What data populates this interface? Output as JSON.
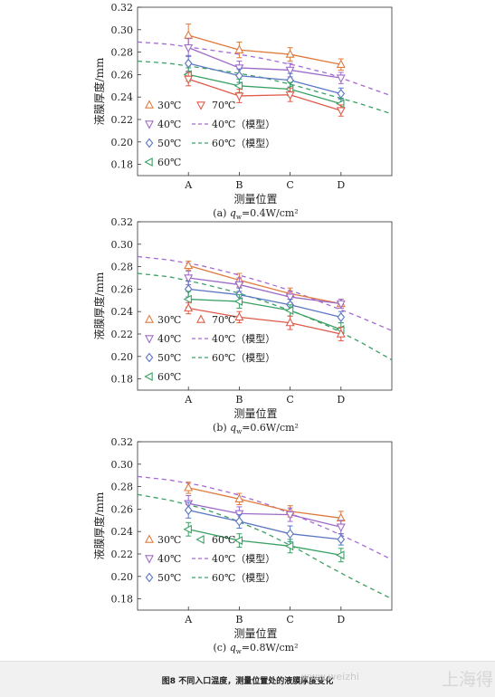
{
  "figure_caption": "图8   不同入口温度，测量位置处的液膜厚度变化",
  "watermark": {
    "url": "www.weizhi",
    "brand": "上海得"
  },
  "chart_data": [
    {
      "type": "line",
      "subtitle": "(a) qw=0.4W/cm²",
      "subtitle_prefix": "(a) ",
      "subtitle_q": "q",
      "subtitle_sub": "w",
      "subtitle_suffix": "=0.4W/cm²",
      "xlabel": "测量位置",
      "ylabel": "液膜厚度/mm",
      "categories": [
        "A",
        "B",
        "C",
        "D"
      ],
      "ylim": [
        0.17,
        0.32
      ],
      "yticks": [
        "0.18",
        "0.20",
        "0.22",
        "0.24",
        "0.26",
        "0.28",
        "0.30",
        "0.32"
      ],
      "legend_position": "bottom-left",
      "series": [
        {
          "name": "30℃",
          "marker": "triangle-up",
          "color": "#e07a3e",
          "values": [
            0.295,
            0.282,
            0.278,
            0.269
          ],
          "errors": [
            0.01,
            0.007,
            0.006,
            0.005
          ]
        },
        {
          "name": "40℃",
          "marker": "triangle-down",
          "color": "#9d6ac7",
          "values": [
            0.284,
            0.266,
            0.264,
            0.257
          ],
          "errors": [
            0.008,
            0.006,
            0.006,
            0.005
          ]
        },
        {
          "name": "50℃",
          "marker": "diamond",
          "color": "#5b77c4",
          "values": [
            0.27,
            0.259,
            0.255,
            0.243
          ],
          "errors": [
            0.007,
            0.006,
            0.006,
            0.005
          ]
        },
        {
          "name": "60℃",
          "marker": "triangle-left",
          "color": "#3aa164",
          "values": [
            0.26,
            0.25,
            0.247,
            0.234
          ],
          "errors": [
            0.006,
            0.006,
            0.006,
            0.005
          ]
        },
        {
          "name": "70℃",
          "marker": "triangle-down",
          "color": "#e05a4a",
          "values": [
            0.256,
            0.241,
            0.242,
            0.228
          ],
          "errors": [
            0.006,
            0.006,
            0.006,
            0.005
          ]
        }
      ],
      "models": [
        {
          "name": "40℃（模型）",
          "color": "#a56ad4",
          "x": [
            0,
            0.5,
            1,
            1.5,
            2,
            2.5,
            3,
            3.5,
            4
          ],
          "values": [
            0.289,
            0.287,
            0.283,
            0.279,
            0.274,
            0.268,
            0.261,
            0.251,
            0.241
          ]
        },
        {
          "name": "60℃（模型）",
          "color": "#3aa164",
          "x": [
            0,
            0.5,
            1,
            1.5,
            2,
            2.5,
            3,
            3.5,
            4
          ],
          "values": [
            0.272,
            0.27,
            0.266,
            0.262,
            0.257,
            0.25,
            0.242,
            0.234,
            0.225
          ]
        }
      ]
    },
    {
      "type": "line",
      "subtitle": "(b) qw=0.6W/cm²",
      "subtitle_prefix": "(b) ",
      "subtitle_q": "q",
      "subtitle_sub": "w",
      "subtitle_suffix": "=0.6W/cm²",
      "xlabel": "测量位置",
      "ylabel": "液膜厚度/mm",
      "categories": [
        "A",
        "B",
        "C",
        "D"
      ],
      "ylim": [
        0.17,
        0.32
      ],
      "yticks": [
        "0.18",
        "0.20",
        "0.22",
        "0.24",
        "0.26",
        "0.28",
        "0.30",
        "0.32"
      ],
      "legend_position": "bottom-left",
      "series": [
        {
          "name": "30℃",
          "marker": "triangle-up",
          "color": "#e07a3e",
          "values": [
            0.281,
            0.268,
            0.256,
            0.247
          ],
          "errors": [
            0.004,
            0.006,
            0.005,
            0.004
          ]
        },
        {
          "name": "40℃",
          "marker": "triangle-down",
          "color": "#9d6ac7",
          "values": [
            0.27,
            0.264,
            0.253,
            0.247
          ],
          "errors": [
            0.006,
            0.006,
            0.005,
            0.004
          ]
        },
        {
          "name": "50℃",
          "marker": "diamond",
          "color": "#5b77c4",
          "values": [
            0.26,
            0.255,
            0.246,
            0.235
          ],
          "errors": [
            0.007,
            0.006,
            0.005,
            0.005
          ]
        },
        {
          "name": "60℃",
          "marker": "triangle-left",
          "color": "#3aa164",
          "values": [
            0.251,
            0.249,
            0.241,
            0.224
          ],
          "errors": [
            0.007,
            0.006,
            0.005,
            0.006
          ]
        },
        {
          "name": "70℃",
          "marker": "triangle-up",
          "color": "#e05a4a",
          "values": [
            0.243,
            0.235,
            0.23,
            0.22
          ],
          "errors": [
            0.005,
            0.005,
            0.006,
            0.006
          ]
        }
      ],
      "models": [
        {
          "name": "40℃（模型）",
          "color": "#a56ad4",
          "x": [
            0,
            0.5,
            1,
            1.5,
            2,
            2.5,
            3,
            3.5,
            4
          ],
          "values": [
            0.289,
            0.286,
            0.281,
            0.274,
            0.266,
            0.257,
            0.246,
            0.235,
            0.223
          ]
        },
        {
          "name": "60℃（模型）",
          "color": "#3aa164",
          "x": [
            0,
            0.5,
            1,
            1.5,
            2,
            2.5,
            3,
            3.5,
            4
          ],
          "values": [
            0.274,
            0.271,
            0.265,
            0.258,
            0.249,
            0.239,
            0.227,
            0.213,
            0.197
          ]
        }
      ]
    },
    {
      "type": "line",
      "subtitle": "(c) qw=0.8W/cm²",
      "subtitle_prefix": "(c) ",
      "subtitle_q": "q",
      "subtitle_sub": "w",
      "subtitle_suffix": "=0.8W/cm²",
      "xlabel": "测量位置",
      "ylabel": "液膜厚度/mm",
      "categories": [
        "A",
        "B",
        "C",
        "D"
      ],
      "ylim": [
        0.17,
        0.32
      ],
      "yticks": [
        "0.18",
        "0.20",
        "0.22",
        "0.24",
        "0.26",
        "0.28",
        "0.30",
        "0.32"
      ],
      "legend_position": "bottom-left",
      "series": [
        {
          "name": "30℃",
          "marker": "triangle-up",
          "color": "#e07a3e",
          "values": [
            0.279,
            0.269,
            0.258,
            0.252
          ],
          "errors": [
            0.005,
            0.005,
            0.005,
            0.006
          ]
        },
        {
          "name": "40℃",
          "marker": "triangle-down",
          "color": "#9d6ac7",
          "values": [
            0.265,
            0.256,
            0.255,
            0.244
          ],
          "errors": [
            0.007,
            0.006,
            0.006,
            0.006
          ]
        },
        {
          "name": "50℃",
          "marker": "diamond",
          "color": "#5b77c4",
          "values": [
            0.259,
            0.249,
            0.238,
            0.233
          ],
          "errors": [
            0.007,
            0.006,
            0.007,
            0.005
          ]
        },
        {
          "name": "60℃",
          "marker": "triangle-left",
          "color": "#3aa164",
          "values": [
            0.242,
            0.232,
            0.227,
            0.219
          ],
          "errors": [
            0.006,
            0.006,
            0.006,
            0.006
          ]
        }
      ],
      "models": [
        {
          "name": "40℃（模型）",
          "color": "#a56ad4",
          "x": [
            0,
            0.5,
            1,
            1.5,
            2,
            2.5,
            3,
            3.5,
            4
          ],
          "values": [
            0.289,
            0.286,
            0.281,
            0.274,
            0.265,
            0.254,
            0.242,
            0.229,
            0.215
          ]
        },
        {
          "name": "60℃（模型）",
          "color": "#3aa164",
          "x": [
            0,
            0.5,
            1,
            1.5,
            2,
            2.5,
            3,
            3.5,
            4
          ],
          "values": [
            0.273,
            0.268,
            0.261,
            0.251,
            0.239,
            0.225,
            0.209,
            0.194,
            0.18
          ]
        }
      ]
    }
  ]
}
